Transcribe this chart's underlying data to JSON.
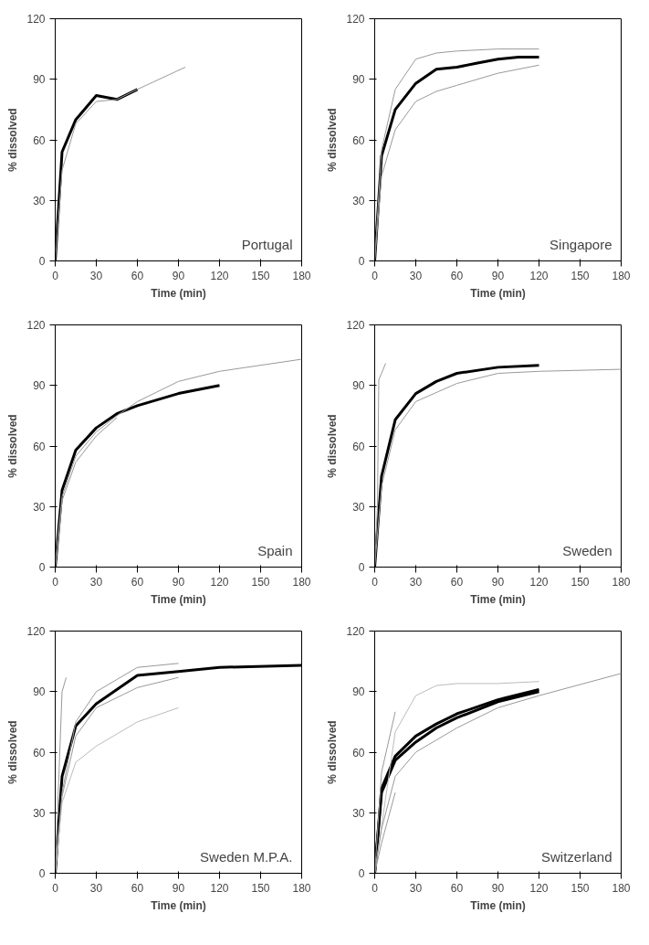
{
  "chart_data": [
    {
      "type": "line",
      "xlabel": "Time (min)",
      "ylabel": "% dissolved",
      "annotations": [
        "Portugal"
      ],
      "xlim": [
        0,
        180
      ],
      "ylim": [
        0,
        120
      ],
      "xticks": [
        0,
        30,
        60,
        90,
        120,
        150,
        180
      ],
      "yticks": [
        0,
        30,
        60,
        90,
        120
      ],
      "series": [
        {
          "color": "#000000",
          "x": [
            0,
            5,
            15,
            30,
            45,
            60
          ],
          "values": [
            0,
            54,
            70,
            82,
            80,
            85
          ]
        },
        {
          "color": "#999999",
          "x": [
            0,
            5,
            15,
            30,
            45,
            60,
            95
          ],
          "values": [
            0,
            45,
            68,
            79,
            80,
            85,
            96
          ]
        }
      ]
    },
    {
      "type": "line",
      "xlabel": "Time (min)",
      "ylabel": "% dissolved",
      "annotations": [
        "Singapore"
      ],
      "xlim": [
        0,
        180
      ],
      "ylim": [
        0,
        120
      ],
      "xticks": [
        0,
        30,
        60,
        90,
        120,
        150,
        180
      ],
      "yticks": [
        0,
        30,
        60,
        90,
        120
      ],
      "series": [
        {
          "color": "#000000",
          "x": [
            0,
            5,
            15,
            30,
            45,
            60,
            75,
            90,
            105,
            120
          ],
          "values": [
            0,
            52,
            75,
            88,
            95,
            96,
            98,
            100,
            101,
            101
          ]
        },
        {
          "color": "#999999",
          "x": [
            0,
            5,
            15,
            30,
            45,
            60,
            90,
            120
          ],
          "values": [
            0,
            55,
            85,
            100,
            103,
            104,
            105,
            105
          ]
        },
        {
          "color": "#999999",
          "x": [
            0,
            5,
            15,
            30,
            45,
            60,
            90,
            120
          ],
          "values": [
            0,
            42,
            65,
            79,
            84,
            87,
            93,
            97
          ]
        }
      ]
    },
    {
      "type": "line",
      "xlabel": "Time (min)",
      "ylabel": "% dissolved",
      "annotations": [
        "Spain"
      ],
      "xlim": [
        0,
        180
      ],
      "ylim": [
        0,
        120
      ],
      "xticks": [
        0,
        30,
        60,
        90,
        120,
        150,
        180
      ],
      "yticks": [
        0,
        30,
        60,
        90,
        120
      ],
      "series": [
        {
          "color": "#000000",
          "x": [
            0,
            5,
            15,
            30,
            45,
            60,
            90,
            120
          ],
          "values": [
            0,
            38,
            58,
            69,
            76,
            80,
            86,
            90
          ]
        },
        {
          "color": "#999999",
          "x": [
            0,
            5,
            15,
            30,
            45,
            60,
            90,
            120,
            180
          ],
          "values": [
            0,
            35,
            55,
            67,
            75,
            82,
            92,
            97,
            103
          ]
        },
        {
          "color": "#999999",
          "x": [
            0,
            5,
            15,
            30,
            45
          ],
          "values": [
            0,
            33,
            52,
            65,
            74
          ]
        }
      ]
    },
    {
      "type": "line",
      "xlabel": "Time (min)",
      "ylabel": "% dissolved",
      "annotations": [
        "Sweden"
      ],
      "xlim": [
        0,
        180
      ],
      "ylim": [
        0,
        120
      ],
      "xticks": [
        0,
        30,
        60,
        90,
        120,
        150,
        180
      ],
      "yticks": [
        0,
        30,
        60,
        90,
        120
      ],
      "series": [
        {
          "color": "#000000",
          "x": [
            0,
            5,
            15,
            30,
            45,
            60,
            90,
            120
          ],
          "values": [
            0,
            45,
            73,
            86,
            92,
            96,
            99,
            100
          ]
        },
        {
          "color": "#999999",
          "x": [
            0,
            2,
            3,
            5,
            8
          ],
          "values": [
            0,
            30,
            93,
            96,
            101
          ]
        },
        {
          "color": "#999999",
          "x": [
            0,
            5,
            15,
            30,
            60,
            90,
            120,
            180
          ],
          "values": [
            0,
            40,
            68,
            82,
            91,
            96,
            97,
            98
          ]
        }
      ]
    },
    {
      "type": "line",
      "xlabel": "Time (min)",
      "ylabel": "% dissolved",
      "annotations": [
        "Sweden M.P.A."
      ],
      "xlim": [
        0,
        180
      ],
      "ylim": [
        0,
        120
      ],
      "xticks": [
        0,
        30,
        60,
        90,
        120,
        150,
        180
      ],
      "yticks": [
        0,
        30,
        60,
        90,
        120
      ],
      "series": [
        {
          "color": "#000000",
          "x": [
            0,
            5,
            15,
            30,
            45,
            60,
            90,
            120,
            180
          ],
          "values": [
            0,
            48,
            73,
            84,
            91,
            98,
            100,
            102,
            103
          ]
        },
        {
          "color": "#999999",
          "x": [
            0,
            5,
            8
          ],
          "values": [
            0,
            90,
            97
          ]
        },
        {
          "color": "#999999",
          "x": [
            0,
            5,
            15,
            30,
            60,
            90
          ],
          "values": [
            0,
            40,
            75,
            90,
            102,
            104
          ]
        },
        {
          "color": "#999999",
          "x": [
            0,
            5,
            15,
            30,
            60,
            90
          ],
          "values": [
            0,
            38,
            68,
            82,
            92,
            97
          ]
        },
        {
          "color": "#bbbbbb",
          "x": [
            0,
            5,
            15,
            30,
            60,
            90
          ],
          "values": [
            0,
            35,
            55,
            63,
            75,
            82
          ]
        }
      ]
    },
    {
      "type": "line",
      "xlabel": "Time (min)",
      "ylabel": "% dissolved",
      "annotations": [
        "Switzerland"
      ],
      "xlim": [
        0,
        180
      ],
      "ylim": [
        0,
        120
      ],
      "xticks": [
        0,
        30,
        60,
        90,
        120,
        150,
        180
      ],
      "yticks": [
        0,
        30,
        60,
        90,
        120
      ],
      "series": [
        {
          "color": "#000000",
          "x": [
            0,
            5,
            15,
            30,
            45,
            60,
            90,
            120
          ],
          "values": [
            0,
            42,
            58,
            68,
            74,
            79,
            86,
            91
          ]
        },
        {
          "color": "#000000",
          "x": [
            0,
            5,
            15,
            30,
            45,
            60,
            90,
            120
          ],
          "values": [
            0,
            40,
            56,
            65,
            72,
            77,
            85,
            90
          ]
        },
        {
          "color": "#999999",
          "x": [
            0,
            5,
            15
          ],
          "values": [
            0,
            50,
            80
          ]
        },
        {
          "color": "#bbbbbb",
          "x": [
            0,
            15,
            30,
            45,
            60,
            90,
            120
          ],
          "values": [
            0,
            70,
            88,
            93,
            94,
            94,
            95
          ]
        },
        {
          "color": "#999999",
          "x": [
            0,
            5,
            15,
            30,
            60,
            90,
            120,
            180
          ],
          "values": [
            0,
            22,
            48,
            60,
            72,
            82,
            88,
            99
          ]
        },
        {
          "color": "#999999",
          "x": [
            0,
            5,
            15
          ],
          "values": [
            0,
            15,
            40
          ]
        }
      ]
    }
  ]
}
